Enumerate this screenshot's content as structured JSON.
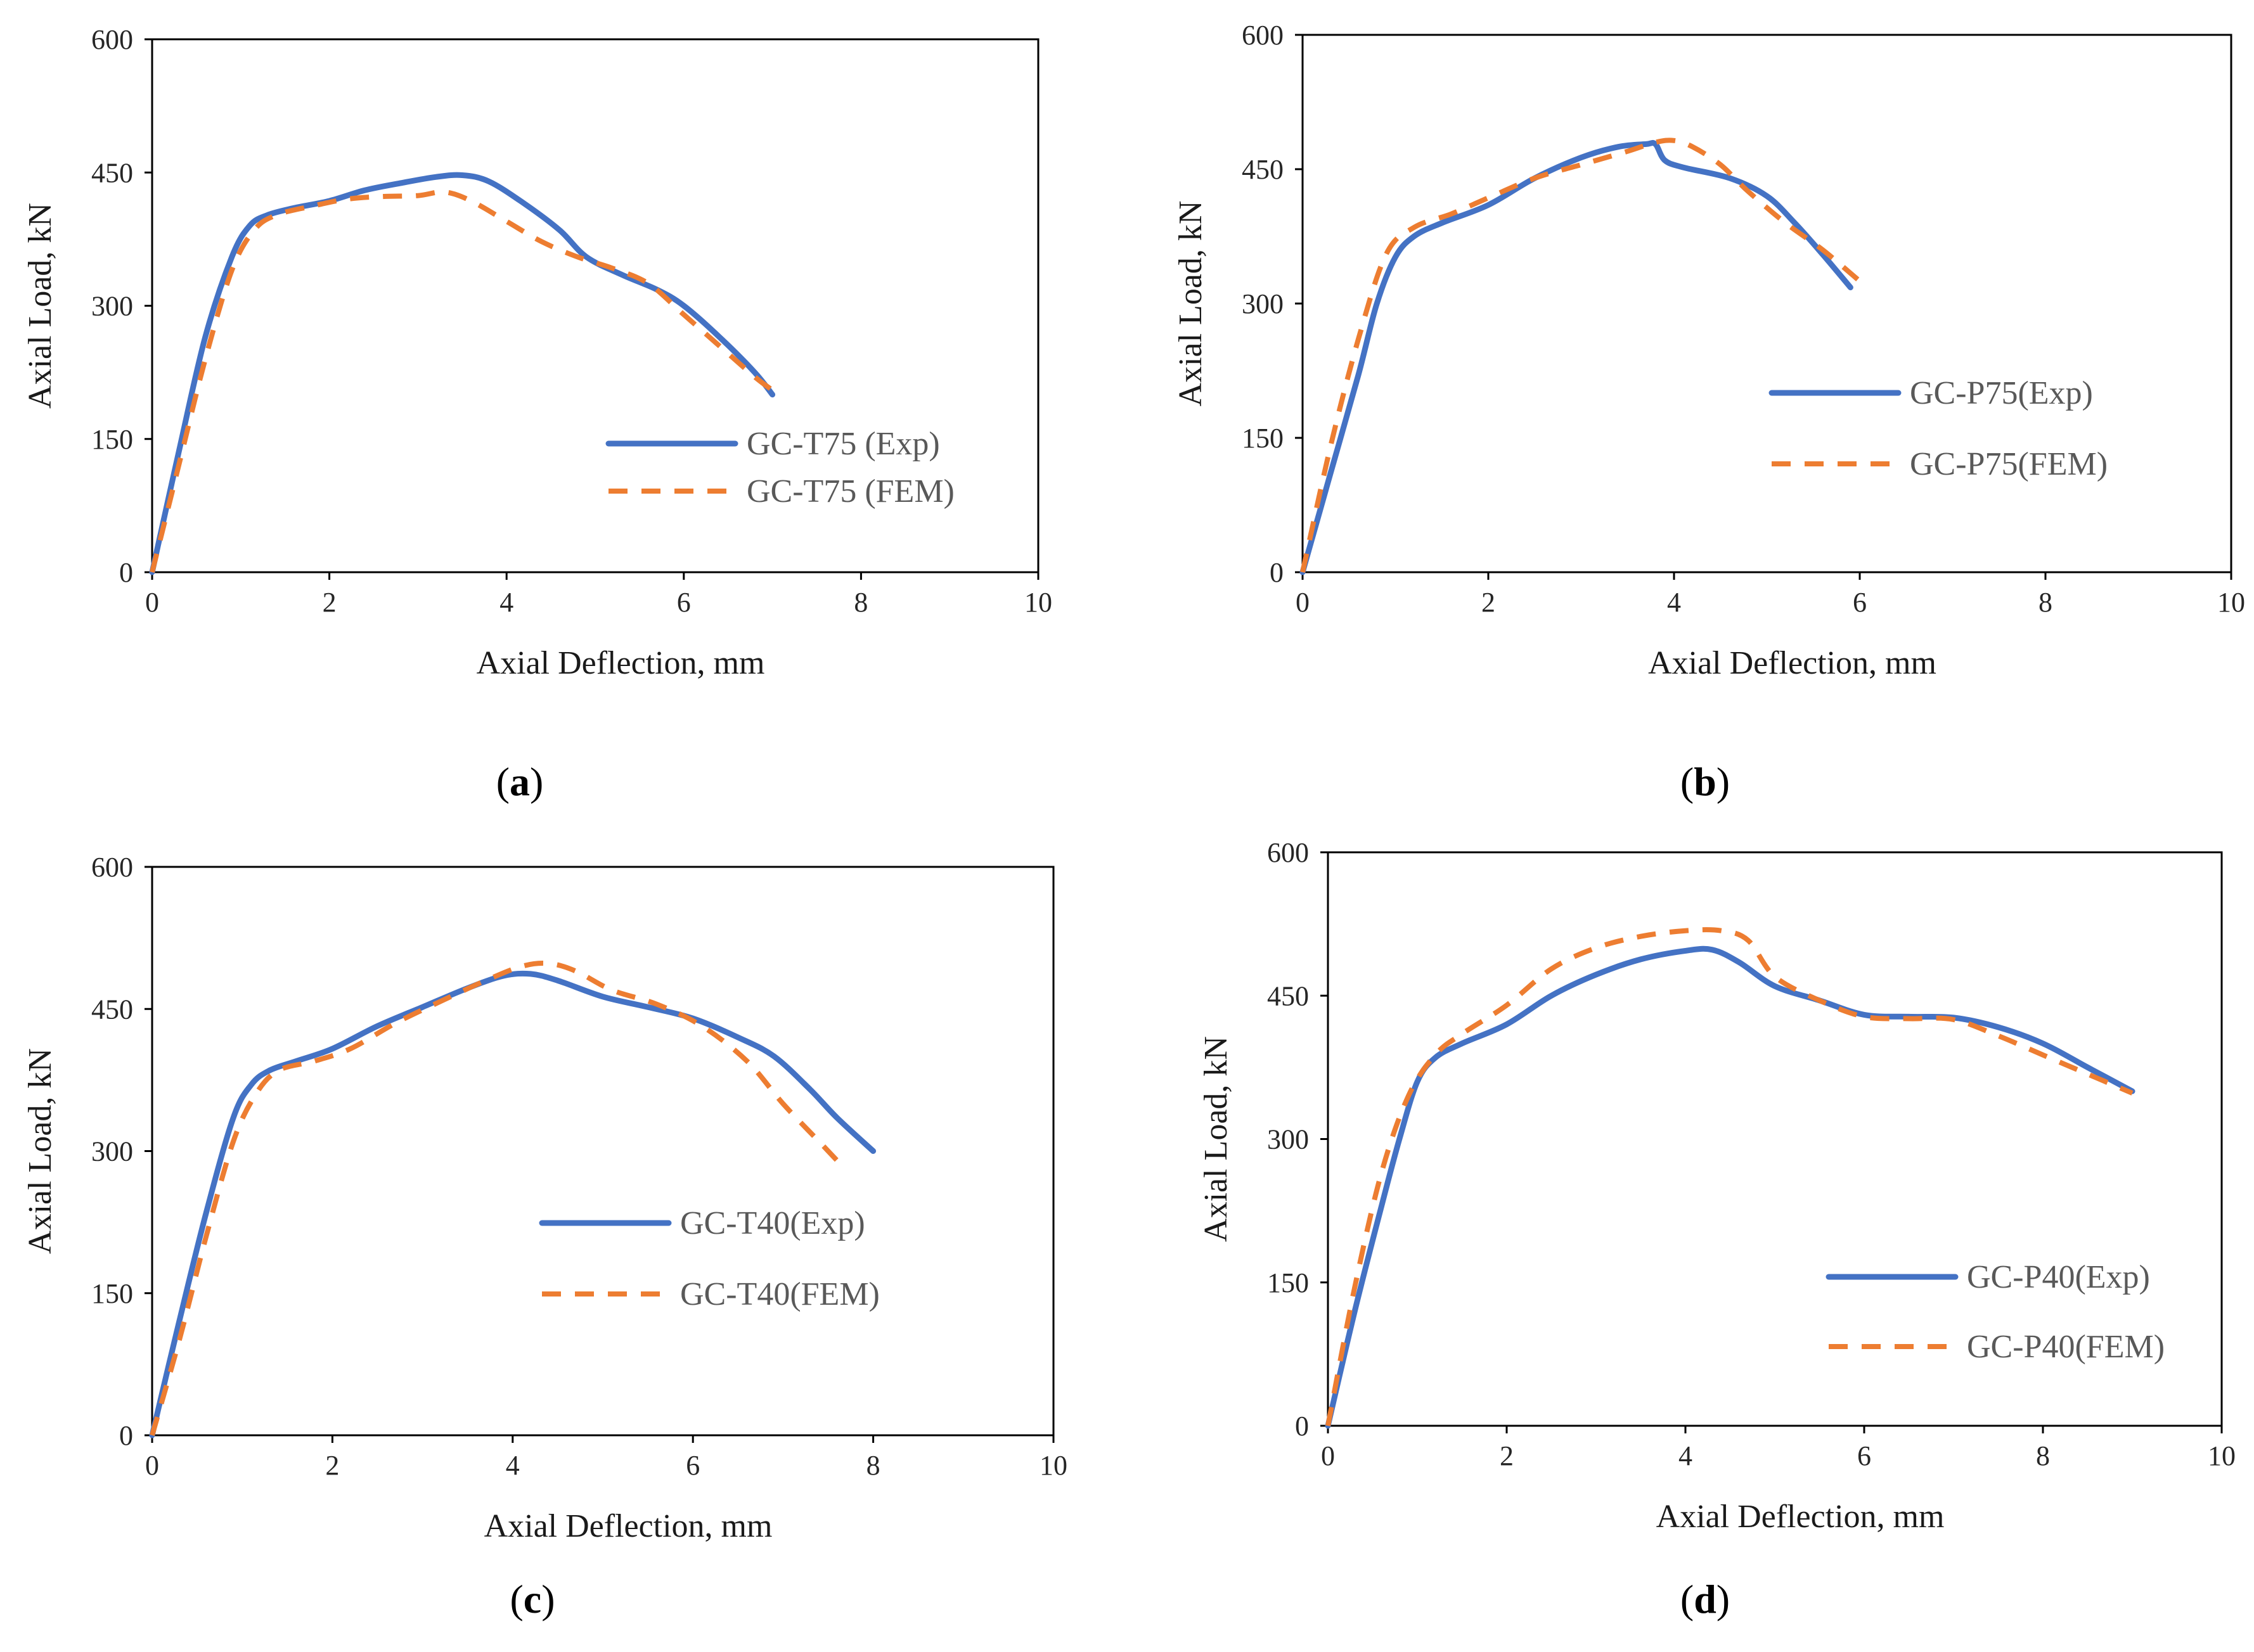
{
  "colors": {
    "exp": "#4472C4",
    "fem": "#ED7D31"
  },
  "chart_data": [
    {
      "type": "line",
      "caption_letter": "a",
      "xlabel": "Axial Deflection, mm",
      "ylabel": "Axial Load, kN",
      "xlim": [
        0,
        10
      ],
      "ylim": [
        0,
        600
      ],
      "xticks": [
        0,
        2,
        4,
        6,
        8,
        10
      ],
      "yticks": [
        0,
        150,
        300,
        450,
        600
      ],
      "legend_position": "bottom-right",
      "series": [
        {
          "name": "GC-T75 (Exp)",
          "style": "solid",
          "x": [
            0,
            0.3,
            0.6,
            0.9,
            1.1,
            1.3,
            1.6,
            2.0,
            2.4,
            2.8,
            3.2,
            3.5,
            3.8,
            4.2,
            4.6,
            4.9,
            5.3,
            5.7,
            6.0,
            6.4,
            6.8,
            7.0
          ],
          "y": [
            0,
            135,
            265,
            355,
            390,
            402,
            410,
            418,
            430,
            438,
            445,
            447,
            440,
            415,
            385,
            355,
            335,
            318,
            300,
            265,
            225,
            200
          ]
        },
        {
          "name": "GC-T75 (FEM)",
          "style": "dashed",
          "x": [
            0,
            0.3,
            0.6,
            0.9,
            1.15,
            1.4,
            1.8,
            2.2,
            2.6,
            3.0,
            3.3,
            3.6,
            4.0,
            4.4,
            4.8,
            5.2,
            5.6,
            6.0,
            6.4,
            6.8,
            7.0
          ],
          "y": [
            0,
            120,
            240,
            340,
            385,
            402,
            412,
            420,
            423,
            424,
            428,
            418,
            395,
            372,
            355,
            342,
            325,
            290,
            255,
            220,
            205
          ]
        }
      ]
    },
    {
      "type": "line",
      "caption_letter": "b",
      "xlabel": "Axial Deflection, mm",
      "ylabel": "Axial Load, kN",
      "xlim": [
        0,
        10
      ],
      "ylim": [
        0,
        600
      ],
      "xticks": [
        0,
        2,
        4,
        6,
        8,
        10
      ],
      "yticks": [
        0,
        150,
        300,
        450,
        600
      ],
      "legend_position": "right",
      "series": [
        {
          "name": "GC-P75(Exp)",
          "style": "solid",
          "x": [
            0,
            0.3,
            0.6,
            0.8,
            1.0,
            1.2,
            1.5,
            2.0,
            2.5,
            3.0,
            3.4,
            3.7,
            3.8,
            3.9,
            4.1,
            4.6,
            5.0,
            5.3,
            5.6,
            5.9
          ],
          "y": [
            0,
            110,
            220,
            300,
            352,
            375,
            390,
            410,
            440,
            463,
            475,
            478,
            478,
            460,
            452,
            440,
            420,
            390,
            355,
            318
          ]
        },
        {
          "name": "GC-P75(FEM)",
          "style": "dashed",
          "x": [
            0,
            0.3,
            0.6,
            0.9,
            1.2,
            1.6,
            2.0,
            2.5,
            3.0,
            3.5,
            3.8,
            4.0,
            4.2,
            4.5,
            4.8,
            5.2,
            5.6,
            6.0
          ],
          "y": [
            0,
            140,
            260,
            355,
            385,
            400,
            418,
            440,
            455,
            470,
            480,
            482,
            475,
            455,
            425,
            390,
            360,
            325
          ]
        }
      ]
    },
    {
      "type": "line",
      "caption_letter": "c",
      "xlabel": "Axial Deflection, mm",
      "ylabel": "Axial Load, kN",
      "xlim": [
        0,
        10
      ],
      "ylim": [
        0,
        600
      ],
      "xticks": [
        0,
        2,
        4,
        6,
        8,
        10
      ],
      "yticks": [
        0,
        150,
        300,
        450,
        600
      ],
      "legend_position": "right",
      "series": [
        {
          "name": "GC-T40(Exp)",
          "style": "solid",
          "x": [
            0,
            0.3,
            0.6,
            0.9,
            1.1,
            1.3,
            1.6,
            2.0,
            2.5,
            3.0,
            3.5,
            3.9,
            4.2,
            4.5,
            5.0,
            5.5,
            6.0,
            6.5,
            6.9,
            7.3,
            7.6,
            8.0
          ],
          "y": [
            0,
            120,
            235,
            335,
            370,
            385,
            395,
            408,
            432,
            452,
            472,
            485,
            487,
            480,
            463,
            452,
            440,
            420,
            400,
            365,
            335,
            300
          ]
        },
        {
          "name": "GC-T40(FEM)",
          "style": "dashed",
          "x": [
            0,
            0.3,
            0.6,
            0.9,
            1.15,
            1.4,
            1.8,
            2.2,
            2.7,
            3.2,
            3.7,
            4.1,
            4.4,
            4.7,
            5.1,
            5.6,
            6.1,
            6.6,
            7.0,
            7.4,
            7.6
          ],
          "y": [
            0,
            100,
            210,
            310,
            360,
            385,
            395,
            408,
            435,
            458,
            480,
            495,
            498,
            490,
            470,
            455,
            432,
            395,
            350,
            310,
            290
          ]
        }
      ]
    },
    {
      "type": "line",
      "caption_letter": "d",
      "xlabel": "Axial Deflection, mm",
      "ylabel": "Axial Load, kN",
      "xlim": [
        0,
        10
      ],
      "ylim": [
        0,
        600
      ],
      "xticks": [
        0,
        2,
        4,
        6,
        8,
        10
      ],
      "yticks": [
        0,
        150,
        300,
        450,
        600
      ],
      "legend_position": "bottom-right",
      "series": [
        {
          "name": "GC-P40(Exp)",
          "style": "solid",
          "x": [
            0,
            0.3,
            0.6,
            0.8,
            1.0,
            1.2,
            1.5,
            2.0,
            2.5,
            3.0,
            3.5,
            4.0,
            4.3,
            4.6,
            5.0,
            5.5,
            6.0,
            6.5,
            7.0,
            7.5,
            8.0,
            8.5,
            9.0
          ],
          "y": [
            0,
            120,
            230,
            300,
            360,
            385,
            400,
            420,
            450,
            472,
            488,
            497,
            498,
            485,
            460,
            445,
            430,
            428,
            427,
            417,
            400,
            375,
            350
          ]
        },
        {
          "name": "GC-P40(FEM)",
          "style": "dashed",
          "x": [
            0,
            0.3,
            0.6,
            0.9,
            1.2,
            1.5,
            2.0,
            2.5,
            3.0,
            3.5,
            4.0,
            4.4,
            4.7,
            5.0,
            5.5,
            6.0,
            6.5,
            7.0,
            7.5,
            8.0,
            8.5,
            9.0
          ],
          "y": [
            0,
            145,
            265,
            345,
            388,
            410,
            440,
            478,
            500,
            512,
            518,
            518,
            508,
            470,
            445,
            428,
            426,
            425,
            408,
            388,
            368,
            348
          ]
        }
      ]
    }
  ]
}
